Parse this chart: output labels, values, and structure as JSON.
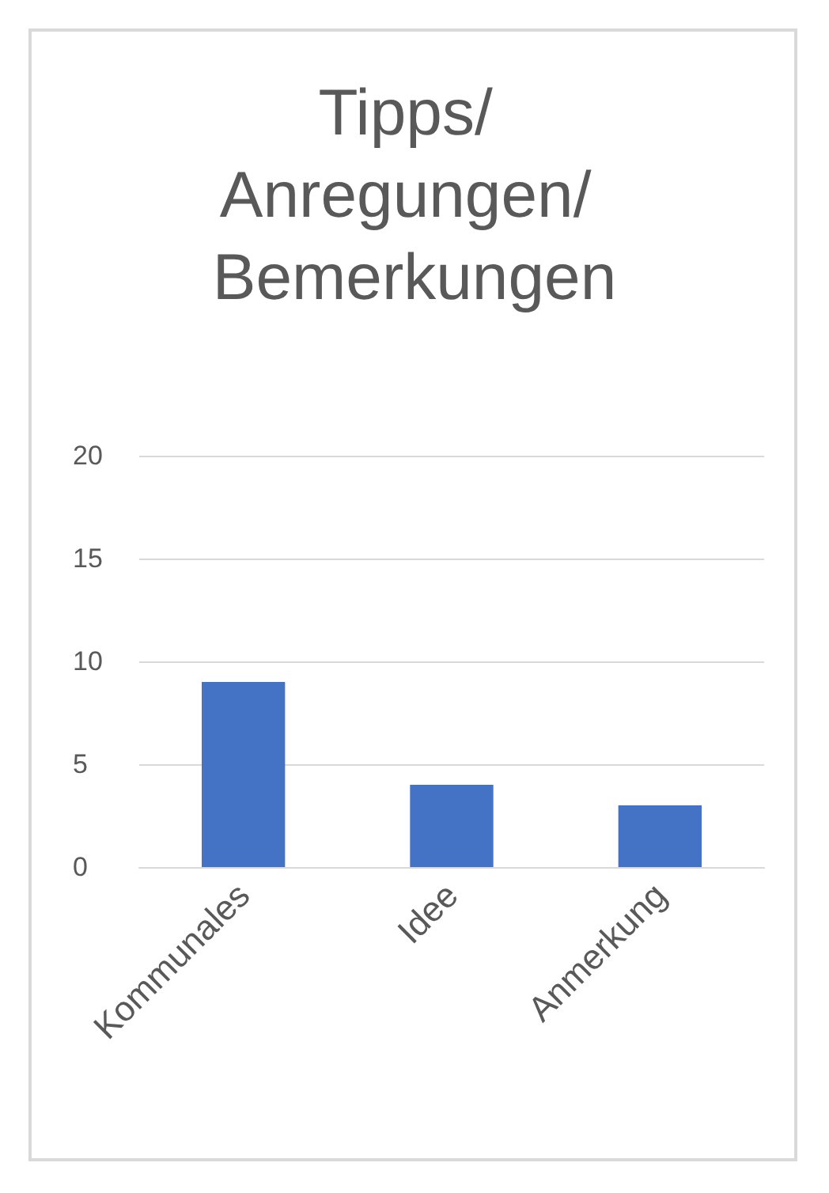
{
  "chart_data": {
    "type": "bar",
    "title": "Tipps/ Anregungen/ Bemerkungen",
    "categories": [
      "Kommunales",
      "Idee",
      "Anmerkung"
    ],
    "values": [
      9,
      4,
      3
    ],
    "color": "#4472c4",
    "ylim": [
      0,
      20
    ],
    "yticks": [
      0,
      5,
      10,
      15,
      20
    ],
    "grid": "y"
  }
}
